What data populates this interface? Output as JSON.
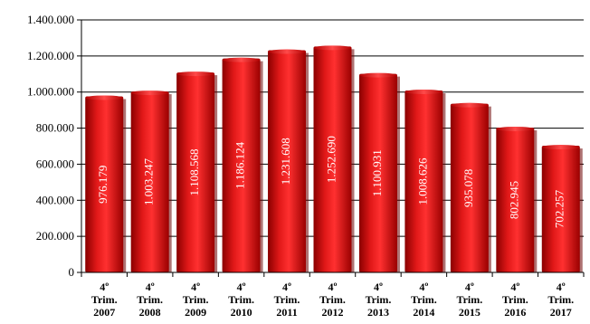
{
  "chart_data": {
    "type": "bar",
    "categories": [
      [
        "4º",
        "Trim.",
        "2007"
      ],
      [
        "4º",
        "Trim.",
        "2008"
      ],
      [
        "4º",
        "Trim.",
        "2009"
      ],
      [
        "4º",
        "Trim.",
        "2010"
      ],
      [
        "4º",
        "Trim.",
        "2011"
      ],
      [
        "4º",
        "Trim.",
        "2012"
      ],
      [
        "4º",
        "Trim.",
        "2013"
      ],
      [
        "4º",
        "Trim.",
        "2014"
      ],
      [
        "4º",
        "Trim.",
        "2015"
      ],
      [
        "4º",
        "Trim.",
        "2016"
      ],
      [
        "4º",
        "Trim.",
        "2017"
      ]
    ],
    "values": [
      976179,
      1003247,
      1108568,
      1186124,
      1231608,
      1252690,
      1100931,
      1008626,
      935078,
      802945,
      702257
    ],
    "data_labels": [
      "976.179",
      "1.003.247",
      "1.108.568",
      "1.186.124",
      "1.231.608",
      "1.252.690",
      "1.100.931",
      "1.008.626",
      "935.078",
      "802.945",
      "702.257"
    ],
    "yticks": [
      0,
      200000,
      400000,
      600000,
      800000,
      1000000,
      1200000,
      1400000
    ],
    "ytick_labels": [
      "0",
      "200.000",
      "400.000",
      "600.000",
      "800.000",
      "1.000.000",
      "1.200.000",
      "1.400.000"
    ],
    "ylim": [
      0,
      1400000
    ],
    "grid": true,
    "legend": false,
    "bar_color": "#c00000",
    "bar_highlight": "#ff2a2a",
    "bar_shadow": "#6b0000",
    "grid_color": "#000000",
    "title": "",
    "xlabel": "",
    "ylabel": ""
  }
}
